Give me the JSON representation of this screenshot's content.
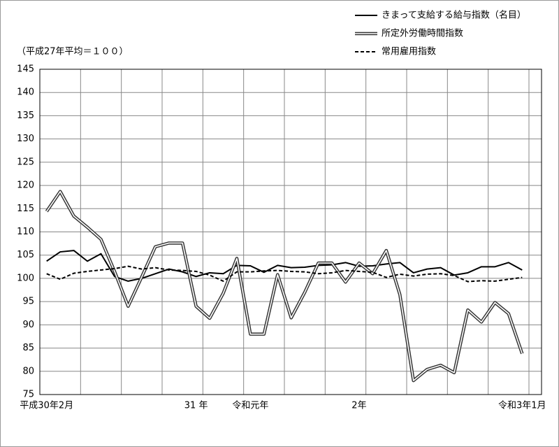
{
  "chart_data": {
    "type": "line",
    "subtitle": "（平成27年平均＝１００）",
    "categories": [
      "平成30年2月",
      null,
      null,
      null,
      null,
      null,
      null,
      null,
      null,
      null,
      null,
      "31 年",
      null,
      null,
      null,
      "令和元年",
      null,
      null,
      null,
      null,
      null,
      null,
      null,
      "2年",
      null,
      null,
      null,
      null,
      null,
      null,
      null,
      null,
      null,
      null,
      null,
      "令和3年1月"
    ],
    "series": [
      {
        "name": "きまって支給する給与指数（名目）",
        "color": "#000000",
        "style": "solid",
        "values": [
          103.7,
          105.7,
          106,
          103.7,
          105.3,
          100.4,
          99.4,
          100,
          101,
          102,
          101.4,
          100.4,
          101.2,
          101,
          102.8,
          102.7,
          101.3,
          102.8,
          102.3,
          102.4,
          102.8,
          102.9,
          103.4,
          102.6,
          102.7,
          103.1,
          103.4,
          101.2,
          102,
          102.3,
          100.7,
          101.2,
          102.5,
          102.5,
          103.4,
          101.8
        ]
      },
      {
        "name": "所定外労働時間指数",
        "color": "#333333",
        "style": "double",
        "values": [
          114.4,
          118.7,
          113.4,
          111,
          108.4,
          101.5,
          94,
          100.3,
          106.8,
          107.6,
          107.6,
          94,
          91.4,
          96.8,
          104.3,
          88,
          88,
          100.8,
          91.5,
          97,
          103.3,
          103.3,
          99.2,
          103.3,
          101,
          106,
          96.5,
          78,
          80.4,
          81.3,
          79.7,
          93.2,
          90.6,
          94.8,
          92.4,
          83.8
        ]
      },
      {
        "name": "常用雇用指数",
        "color": "#000000",
        "style": "dashed",
        "values": [
          101,
          99.8,
          101.1,
          101.5,
          101.8,
          102.1,
          102.6,
          102,
          102.3,
          101.8,
          101.7,
          101.5,
          100.7,
          99.4,
          101.4,
          101.4,
          101.6,
          101.7,
          101.5,
          101.4,
          101,
          101.2,
          101.7,
          101.5,
          101.3,
          100.2,
          100.9,
          100.5,
          100.9,
          101,
          100.6,
          99.3,
          99.5,
          99.4,
          99.8,
          100.2
        ]
      }
    ],
    "ylim": [
      75,
      145
    ],
    "yticks": [
      75,
      80,
      85,
      90,
      95,
      100,
      105,
      110,
      115,
      120,
      125,
      130,
      135,
      140,
      145
    ],
    "grid": true
  }
}
